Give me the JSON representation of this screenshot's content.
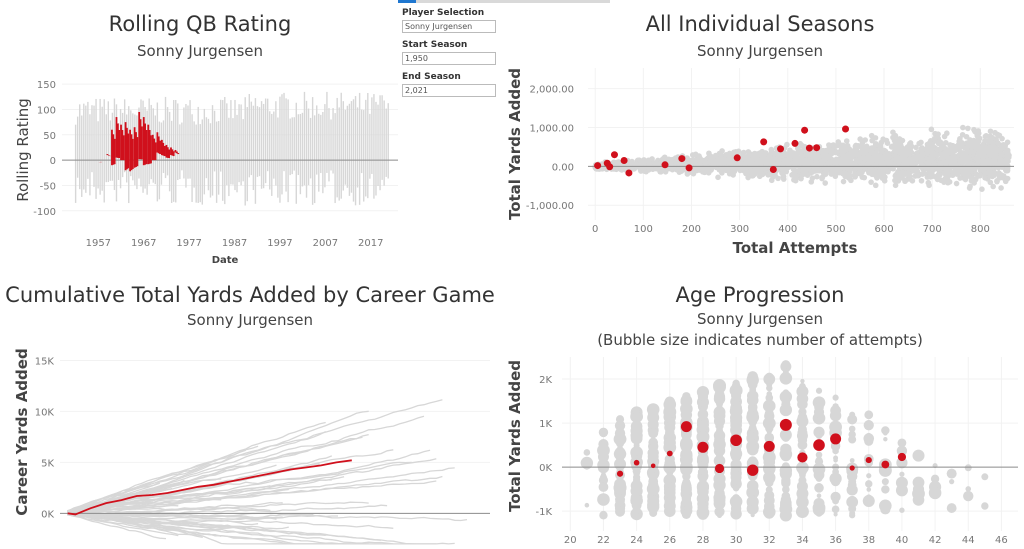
{
  "player": "Sonny Jurgensen",
  "colors": {
    "highlight": "#d0101c",
    "background_series": "#d7d7d7",
    "zero_line": "#8c8c8c",
    "axis_text": "#777777"
  },
  "controls": {
    "player_label": "Player Selection",
    "player_value": "Sonny Jurgensen",
    "start_label": "Start Season",
    "start_value": "1,950",
    "end_label": "End Season",
    "end_value": "2,021"
  },
  "chart_data": [
    {
      "id": "rolling",
      "type": "line",
      "title": "Rolling QB Rating",
      "subtitle": "Sonny Jurgensen",
      "xlabel": "Date",
      "ylabel": "Rolling Rating",
      "xlim": [
        1949,
        2023
      ],
      "ylim": [
        -130,
        170
      ],
      "xticks": [
        1957,
        1967,
        1977,
        1987,
        1997,
        2007,
        2017
      ],
      "yticks": [
        150,
        100,
        50,
        0,
        -50,
        -100
      ],
      "highlight": {
        "name": "Sonny Jurgensen",
        "seasons": [
          1957,
          1958,
          1959,
          1960,
          1961,
          1962,
          1963,
          1964,
          1965,
          1966,
          1967,
          1968,
          1969,
          1970,
          1971,
          1972,
          1973,
          1974
        ],
        "low": [
          -5,
          0,
          10,
          -10,
          5,
          0,
          -20,
          -22,
          -15,
          2,
          -10,
          -8,
          0,
          15,
          10,
          5,
          10,
          15
        ],
        "high": [
          -5,
          0,
          12,
          60,
          85,
          70,
          75,
          60,
          65,
          95,
          85,
          70,
          50,
          55,
          40,
          30,
          25,
          20
        ]
      }
    },
    {
      "id": "seasons",
      "type": "scatter",
      "title": "All Individual Seasons",
      "subtitle": "Sonny Jurgensen",
      "xlabel": "Total Attempts",
      "ylabel": "Total Yards Added",
      "xlim": [
        -15,
        870
      ],
      "ylim": [
        -1380,
        2530
      ],
      "xticks": [
        0,
        100,
        200,
        300,
        400,
        500,
        600,
        700,
        800
      ],
      "yticks": [
        2000,
        1000,
        0,
        -1000
      ],
      "ytick_labels": [
        "2,000.00",
        "1,000.00",
        "0.00",
        "-1,000.00"
      ],
      "highlight_points": [
        {
          "x": 5,
          "y": 20
        },
        {
          "x": 25,
          "y": 80
        },
        {
          "x": 30,
          "y": -10
        },
        {
          "x": 40,
          "y": 300
        },
        {
          "x": 60,
          "y": 150
        },
        {
          "x": 70,
          "y": -170
        },
        {
          "x": 145,
          "y": 40
        },
        {
          "x": 180,
          "y": 200
        },
        {
          "x": 195,
          "y": -40
        },
        {
          "x": 295,
          "y": 220
        },
        {
          "x": 350,
          "y": 630
        },
        {
          "x": 370,
          "y": -80
        },
        {
          "x": 385,
          "y": 450
        },
        {
          "x": 415,
          "y": 590
        },
        {
          "x": 435,
          "y": 930
        },
        {
          "x": 445,
          "y": 470
        },
        {
          "x": 460,
          "y": 480
        },
        {
          "x": 520,
          "y": 960
        }
      ]
    },
    {
      "id": "cumulative",
      "type": "line",
      "title": "Cumulative Total Yards Added by Career Game",
      "subtitle": "Sonny Jurgensen",
      "xlabel": "",
      "ylabel": "Career Yards Added",
      "xlim": [
        0,
        280
      ],
      "ylim": [
        -3500,
        17500
      ],
      "yticks": [
        0,
        5000,
        10000,
        15000
      ],
      "ytick_labels": [
        "0K",
        "5K",
        "10K",
        "15K"
      ],
      "highlight_line": {
        "name": "Sonny Jurgensen",
        "games": [
          5,
          10,
          15,
          20,
          30,
          40,
          50,
          60,
          70,
          80,
          90,
          100,
          110,
          120,
          130,
          140,
          150,
          160,
          170,
          180,
          190
        ],
        "values": [
          0,
          -100,
          200,
          500,
          1000,
          1300,
          1700,
          1800,
          2000,
          2300,
          2600,
          2800,
          3100,
          3400,
          3700,
          4000,
          4300,
          4500,
          4700,
          5000,
          5200
        ]
      }
    },
    {
      "id": "age",
      "type": "scatter",
      "title": "Age Progression",
      "subtitle": "Sonny Jurgensen",
      "subtitle2": "(Bubble size indicates number of attempts)",
      "xlabel": "",
      "ylabel": "Total Yards Added",
      "xlim": [
        19.5,
        47
      ],
      "ylim": [
        -1450,
        2500
      ],
      "xticks": [
        20,
        22,
        24,
        26,
        28,
        30,
        32,
        34,
        36,
        38,
        40,
        42,
        44,
        46
      ],
      "yticks": [
        2000,
        1000,
        0,
        -1000
      ],
      "ytick_labels": [
        "2K",
        "1K",
        "0K",
        "-1K"
      ],
      "highlight_points": [
        {
          "age": 23,
          "y": -150,
          "attempts": 40
        },
        {
          "age": 24,
          "y": 100,
          "attempts": 25
        },
        {
          "age": 25,
          "y": 30,
          "attempts": 10
        },
        {
          "age": 26,
          "y": 310,
          "attempts": 30
        },
        {
          "age": 27,
          "y": 920,
          "attempts": 250
        },
        {
          "age": 28,
          "y": 450,
          "attempts": 260
        },
        {
          "age": 29,
          "y": -30,
          "attempts": 150
        },
        {
          "age": 30,
          "y": 610,
          "attempts": 300
        },
        {
          "age": 31,
          "y": -70,
          "attempts": 280
        },
        {
          "age": 32,
          "y": 470,
          "attempts": 260
        },
        {
          "age": 33,
          "y": 960,
          "attempts": 330
        },
        {
          "age": 34,
          "y": 220,
          "attempts": 210
        },
        {
          "age": 35,
          "y": 500,
          "attempts": 300
        },
        {
          "age": 36,
          "y": 640,
          "attempts": 250
        },
        {
          "age": 37,
          "y": -20,
          "attempts": 20
        },
        {
          "age": 38,
          "y": 160,
          "attempts": 40
        },
        {
          "age": 39,
          "y": 60,
          "attempts": 90
        },
        {
          "age": 40,
          "y": 230,
          "attempts": 110
        }
      ]
    }
  ]
}
